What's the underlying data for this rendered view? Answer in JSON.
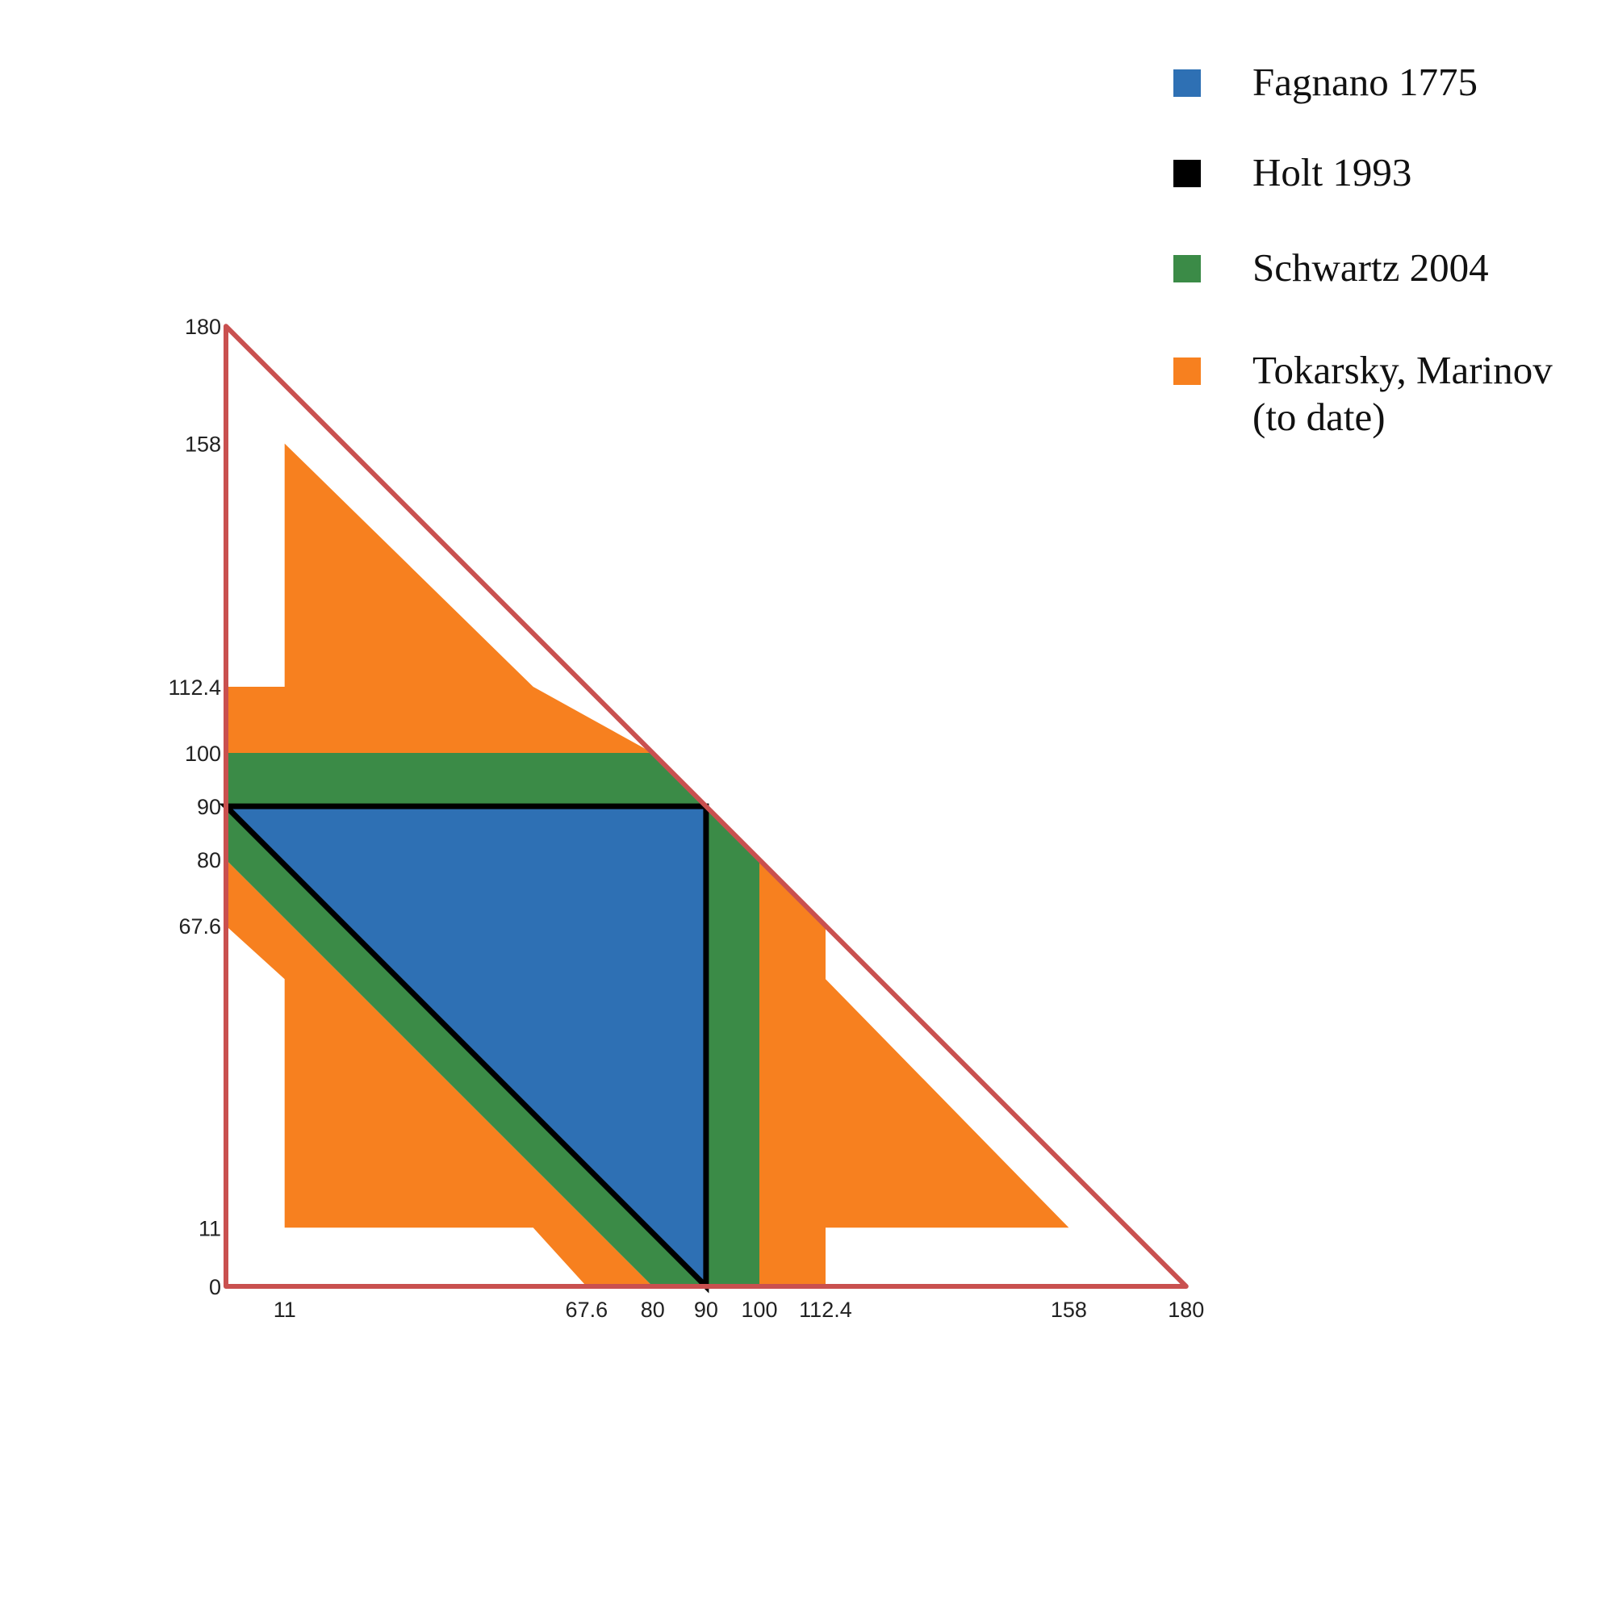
{
  "chart_data": {
    "type": "area",
    "xlim": [
      0,
      180
    ],
    "ylim": [
      0,
      180
    ],
    "x_ticks": [
      "11",
      "67.6",
      "80",
      "90",
      "100",
      "112.4",
      "158",
      "180"
    ],
    "y_ticks": [
      "0",
      "11",
      "67.6",
      "80",
      "90",
      "100",
      "112.4",
      "158",
      "180"
    ],
    "boundary": {
      "color": "#c9504f",
      "points": [
        [
          0,
          0
        ],
        [
          180,
          0
        ],
        [
          0,
          180
        ]
      ]
    },
    "series": [
      {
        "name": "Tokarsky, Marinov\n(to date)",
        "color": "#f7801f",
        "regions": [
          [
            [
              0,
              80
            ],
            [
              0,
              67.6
            ],
            [
              11,
              57.6
            ],
            [
              11,
              11
            ],
            [
              57.6,
              11
            ],
            [
              67.6,
              0
            ],
            [
              80,
              0
            ]
          ],
          [
            [
              11,
              158
            ],
            [
              11,
              112.4
            ],
            [
              0,
              112.4
            ],
            [
              0,
              100
            ],
            [
              80,
              100
            ],
            [
              57.6,
              112.4
            ]
          ],
          [
            [
              100,
              80
            ],
            [
              100,
              0
            ],
            [
              112.4,
              0
            ],
            [
              112.4,
              11
            ],
            [
              158,
              11
            ],
            [
              112.4,
              57.6
            ],
            [
              112.4,
              67.6
            ]
          ]
        ]
      },
      {
        "name": "Schwartz 2004",
        "color": "#3b8b47",
        "regions": [
          [
            [
              0,
              100
            ],
            [
              80,
              100
            ],
            [
              90,
              90
            ],
            [
              0,
              90
            ]
          ],
          [
            [
              90,
              90
            ],
            [
              100,
              80
            ],
            [
              100,
              0
            ],
            [
              90,
              0
            ]
          ],
          [
            [
              0,
              90
            ],
            [
              90,
              0
            ],
            [
              80,
              0
            ],
            [
              0,
              80
            ]
          ]
        ]
      },
      {
        "name": "Fagnano 1775",
        "color": "#2e70b4",
        "regions": [
          [
            [
              0,
              90
            ],
            [
              90,
              90
            ],
            [
              90,
              0
            ]
          ]
        ]
      },
      {
        "name": "Holt 1993",
        "color": "#000000",
        "outline": [
          [
            0,
            90
          ],
          [
            90,
            90
          ],
          [
            90,
            0
          ]
        ]
      }
    ],
    "legend": [
      {
        "label": "Fagnano 1775",
        "color": "#2e70b4"
      },
      {
        "label": "Holt 1993",
        "color": "#000000"
      },
      {
        "label": "Schwartz 2004",
        "color": "#3b8b47"
      },
      {
        "label": "Tokarsky, Marinov\n(to date)",
        "color": "#f7801f"
      }
    ]
  }
}
